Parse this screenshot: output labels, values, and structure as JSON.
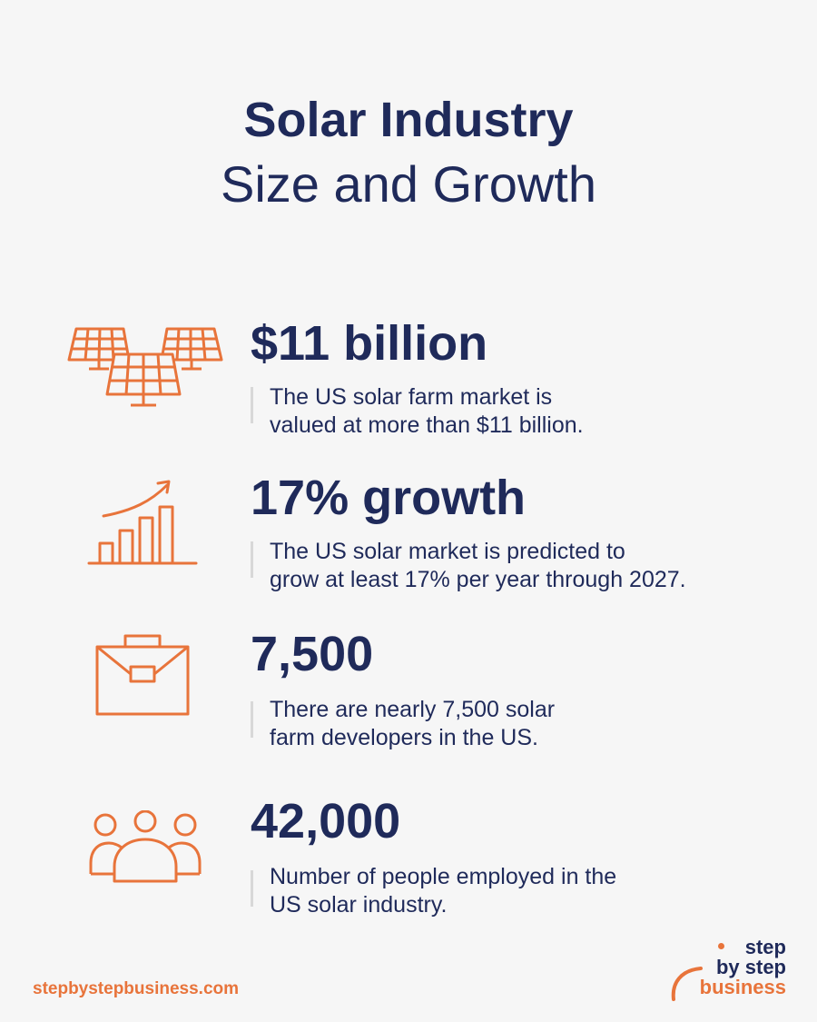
{
  "header": {
    "title": "Solar Industry",
    "subtitle": "Size and Growth"
  },
  "stats": [
    {
      "value": "$11 billion",
      "desc_line1": "The US solar farm market is",
      "desc_line2": "valued at more than $11 billion.",
      "icon": "solar-panels-icon"
    },
    {
      "value": "17% growth",
      "desc_line1": "The US solar market is predicted to",
      "desc_line2": "grow at least 17% per year through 2027.",
      "icon": "growth-chart-icon"
    },
    {
      "value": "7,500",
      "desc_line1": "There are nearly 7,500 solar",
      "desc_line2": "farm developers in the US.",
      "icon": "briefcase-icon"
    },
    {
      "value": "42,000",
      "desc_line1": "Number of people employed in the",
      "desc_line2": "US solar industry.",
      "icon": "people-group-icon"
    }
  ],
  "footer": {
    "url": "stepbystepbusiness.com",
    "logo_line1": "step",
    "logo_line2": "by step",
    "logo_line3": "business"
  },
  "colors": {
    "navy": "#1f2a5a",
    "orange": "#e8743b",
    "background": "#f6f6f6"
  }
}
